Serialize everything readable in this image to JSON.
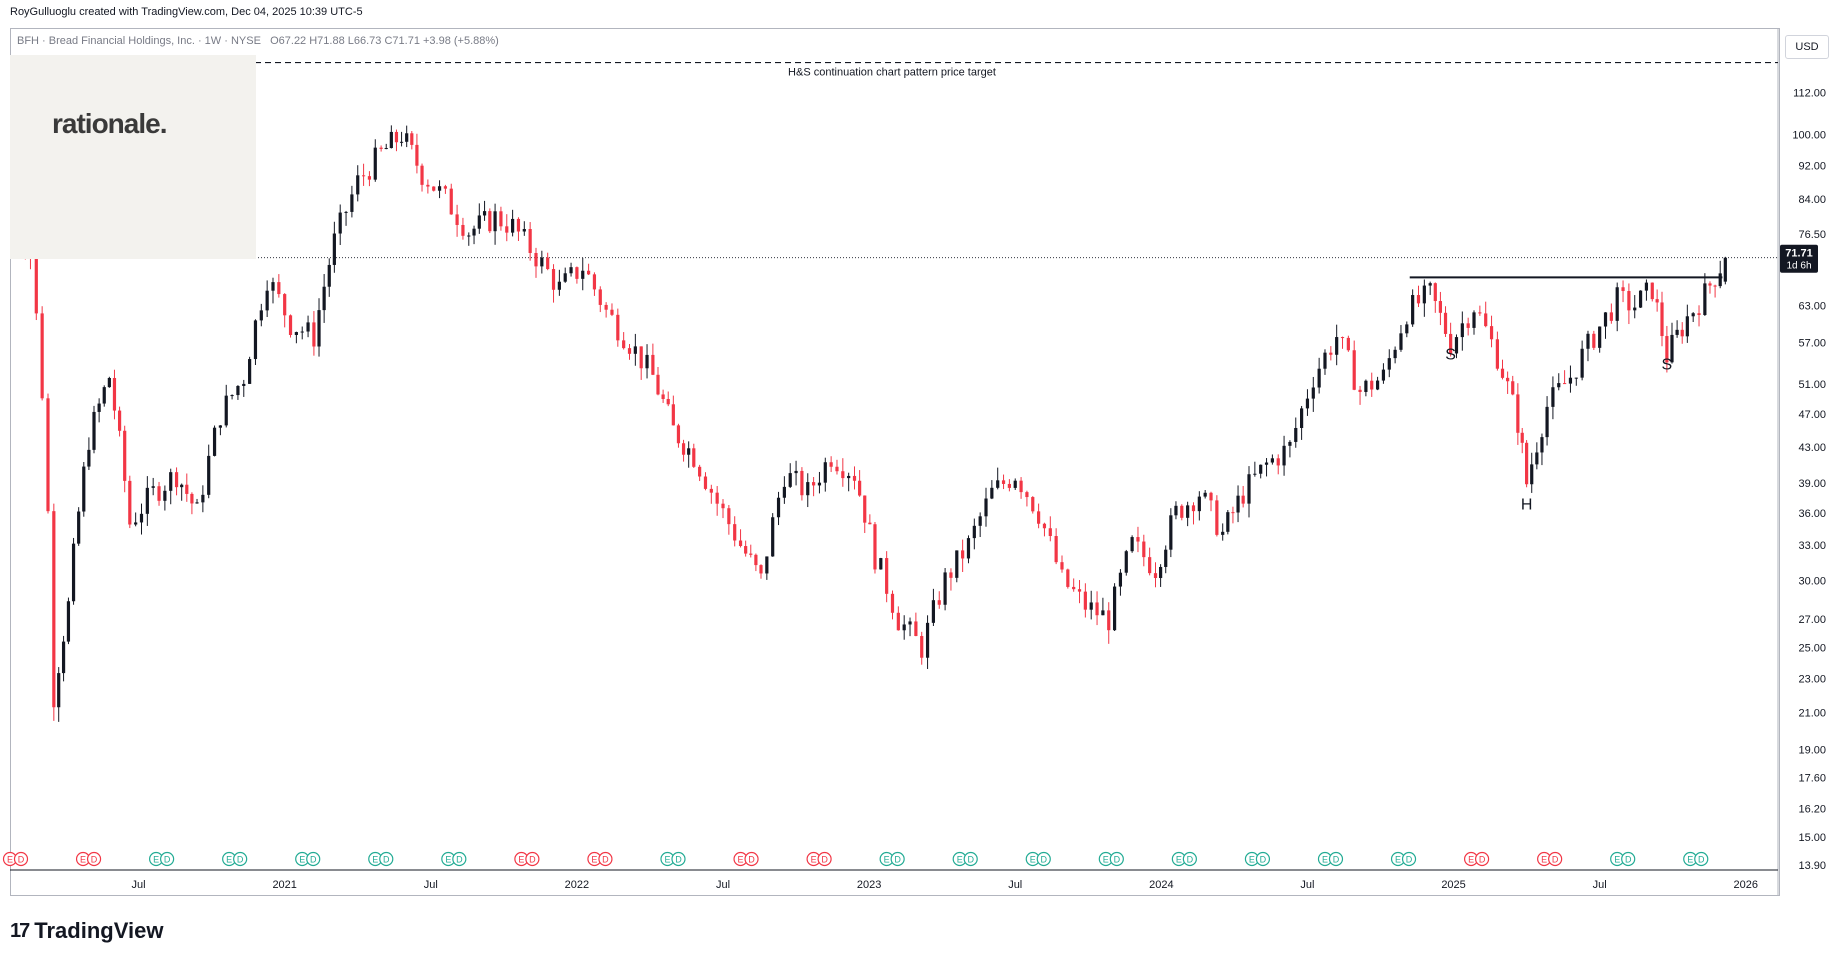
{
  "header": {
    "author_line": "RoyGulluoglu created with TradingView.com, Dec 04, 2025 10:39 UTC-5",
    "symbol_line": "BFH · Bread Financial Holdings, Inc. · 1W · NYSE",
    "ohlc": "O67.22  H71.88  L66.73  C71.71  +3.98 (+5.88%)"
  },
  "watermark": {
    "logo_text": "rationale."
  },
  "axis": {
    "currency": "USD"
  },
  "footer": {
    "brand": "TradingView",
    "mark": "17"
  },
  "colors": {
    "up": "#131722",
    "down": "#f23645",
    "annot": "#131722",
    "grid": "#b2b5be"
  },
  "chart_data": {
    "type": "candlestick",
    "title": "BFH · Bread Financial Holdings, Inc. · 1W · NYSE",
    "scale": "log",
    "ylim": [
      13.9,
      124
    ],
    "y_ticks": [
      13.9,
      15.0,
      16.2,
      17.6,
      19.0,
      21.0,
      23.0,
      25.0,
      27.0,
      30.0,
      33.0,
      36.0,
      39.0,
      43.0,
      47.0,
      51.0,
      57.0,
      63.0,
      76.5,
      84.0,
      92.0,
      100.0,
      112.0
    ],
    "x_ticks": [
      {
        "label": "Jul",
        "t": 2020.5
      },
      {
        "label": "2021",
        "t": 2021.0
      },
      {
        "label": "Jul",
        "t": 2021.5
      },
      {
        "label": "2022",
        "t": 2022.0
      },
      {
        "label": "Jul",
        "t": 2022.5
      },
      {
        "label": "2023",
        "t": 2023.0
      },
      {
        "label": "Jul",
        "t": 2023.5
      },
      {
        "label": "2024",
        "t": 2024.0
      },
      {
        "label": "Jul",
        "t": 2024.5
      },
      {
        "label": "2025",
        "t": 2025.0
      },
      {
        "label": "Jul",
        "t": 2025.5
      },
      {
        "label": "2026",
        "t": 2026.0
      }
    ],
    "xlim": [
      2020.06,
      2026.1
    ],
    "last_price": {
      "value": 71.71,
      "label": "71.71",
      "sub": "1d 6h"
    },
    "target_line": {
      "value": 121.5,
      "label": "H&S continuation chart pattern price target"
    },
    "neckline": {
      "value": 68.0,
      "t_start": 2024.85,
      "t_end": 2025.92
    },
    "pattern_labels": [
      {
        "text": "S",
        "t": 2024.99,
        "y": 54.5
      },
      {
        "text": "H",
        "t": 2025.25,
        "y": 36.3
      },
      {
        "text": "S",
        "t": 2025.73,
        "y": 53.0
      }
    ],
    "keypoints": [
      [
        2020.06,
        85
      ],
      [
        2020.13,
        72
      ],
      [
        2020.17,
        50
      ],
      [
        2020.21,
        22
      ],
      [
        2020.26,
        28
      ],
      [
        2020.33,
        44
      ],
      [
        2020.4,
        52
      ],
      [
        2020.47,
        35
      ],
      [
        2020.55,
        38
      ],
      [
        2020.63,
        40
      ],
      [
        2020.7,
        36
      ],
      [
        2020.78,
        47
      ],
      [
        2020.86,
        52
      ],
      [
        2020.94,
        68
      ],
      [
        2021.02,
        60
      ],
      [
        2021.1,
        58
      ],
      [
        2021.17,
        75
      ],
      [
        2021.25,
        88
      ],
      [
        2021.33,
        95
      ],
      [
        2021.4,
        100
      ],
      [
        2021.47,
        90
      ],
      [
        2021.55,
        84
      ],
      [
        2021.63,
        77
      ],
      [
        2021.72,
        80
      ],
      [
        2021.78,
        78
      ],
      [
        2021.86,
        72
      ],
      [
        2021.94,
        66
      ],
      [
        2022.02,
        70
      ],
      [
        2022.1,
        62
      ],
      [
        2022.18,
        57
      ],
      [
        2022.26,
        52
      ],
      [
        2022.33,
        45
      ],
      [
        2022.4,
        42
      ],
      [
        2022.48,
        37
      ],
      [
        2022.56,
        33
      ],
      [
        2022.63,
        30
      ],
      [
        2022.71,
        40
      ],
      [
        2022.79,
        38
      ],
      [
        2022.87,
        42
      ],
      [
        2022.95,
        40
      ],
      [
        2023.02,
        32
      ],
      [
        2023.1,
        27
      ],
      [
        2023.18,
        25
      ],
      [
        2023.26,
        30
      ],
      [
        2023.34,
        33
      ],
      [
        2023.42,
        38
      ],
      [
        2023.5,
        40
      ],
      [
        2023.58,
        36
      ],
      [
        2023.66,
        30
      ],
      [
        2023.74,
        28
      ],
      [
        2023.82,
        27
      ],
      [
        2023.9,
        33
      ],
      [
        2023.98,
        31
      ],
      [
        2024.05,
        36
      ],
      [
        2024.13,
        38
      ],
      [
        2024.21,
        34
      ],
      [
        2024.28,
        38
      ],
      [
        2024.36,
        41
      ],
      [
        2024.44,
        43
      ],
      [
        2024.52,
        52
      ],
      [
        2024.6,
        58
      ],
      [
        2024.68,
        50
      ],
      [
        2024.76,
        52
      ],
      [
        2024.84,
        62
      ],
      [
        2024.92,
        65
      ],
      [
        2024.99,
        57
      ],
      [
        2025.07,
        63
      ],
      [
        2025.15,
        55
      ],
      [
        2025.22,
        46
      ],
      [
        2025.25,
        39
      ],
      [
        2025.32,
        48
      ],
      [
        2025.4,
        52
      ],
      [
        2025.48,
        58
      ],
      [
        2025.56,
        64
      ],
      [
        2025.62,
        63
      ],
      [
        2025.68,
        66
      ],
      [
        2025.73,
        55
      ],
      [
        2025.8,
        61
      ],
      [
        2025.86,
        65
      ],
      [
        2025.93,
        71.71
      ]
    ],
    "events_row": {
      "dividends": 22,
      "earnings": 24
    }
  }
}
